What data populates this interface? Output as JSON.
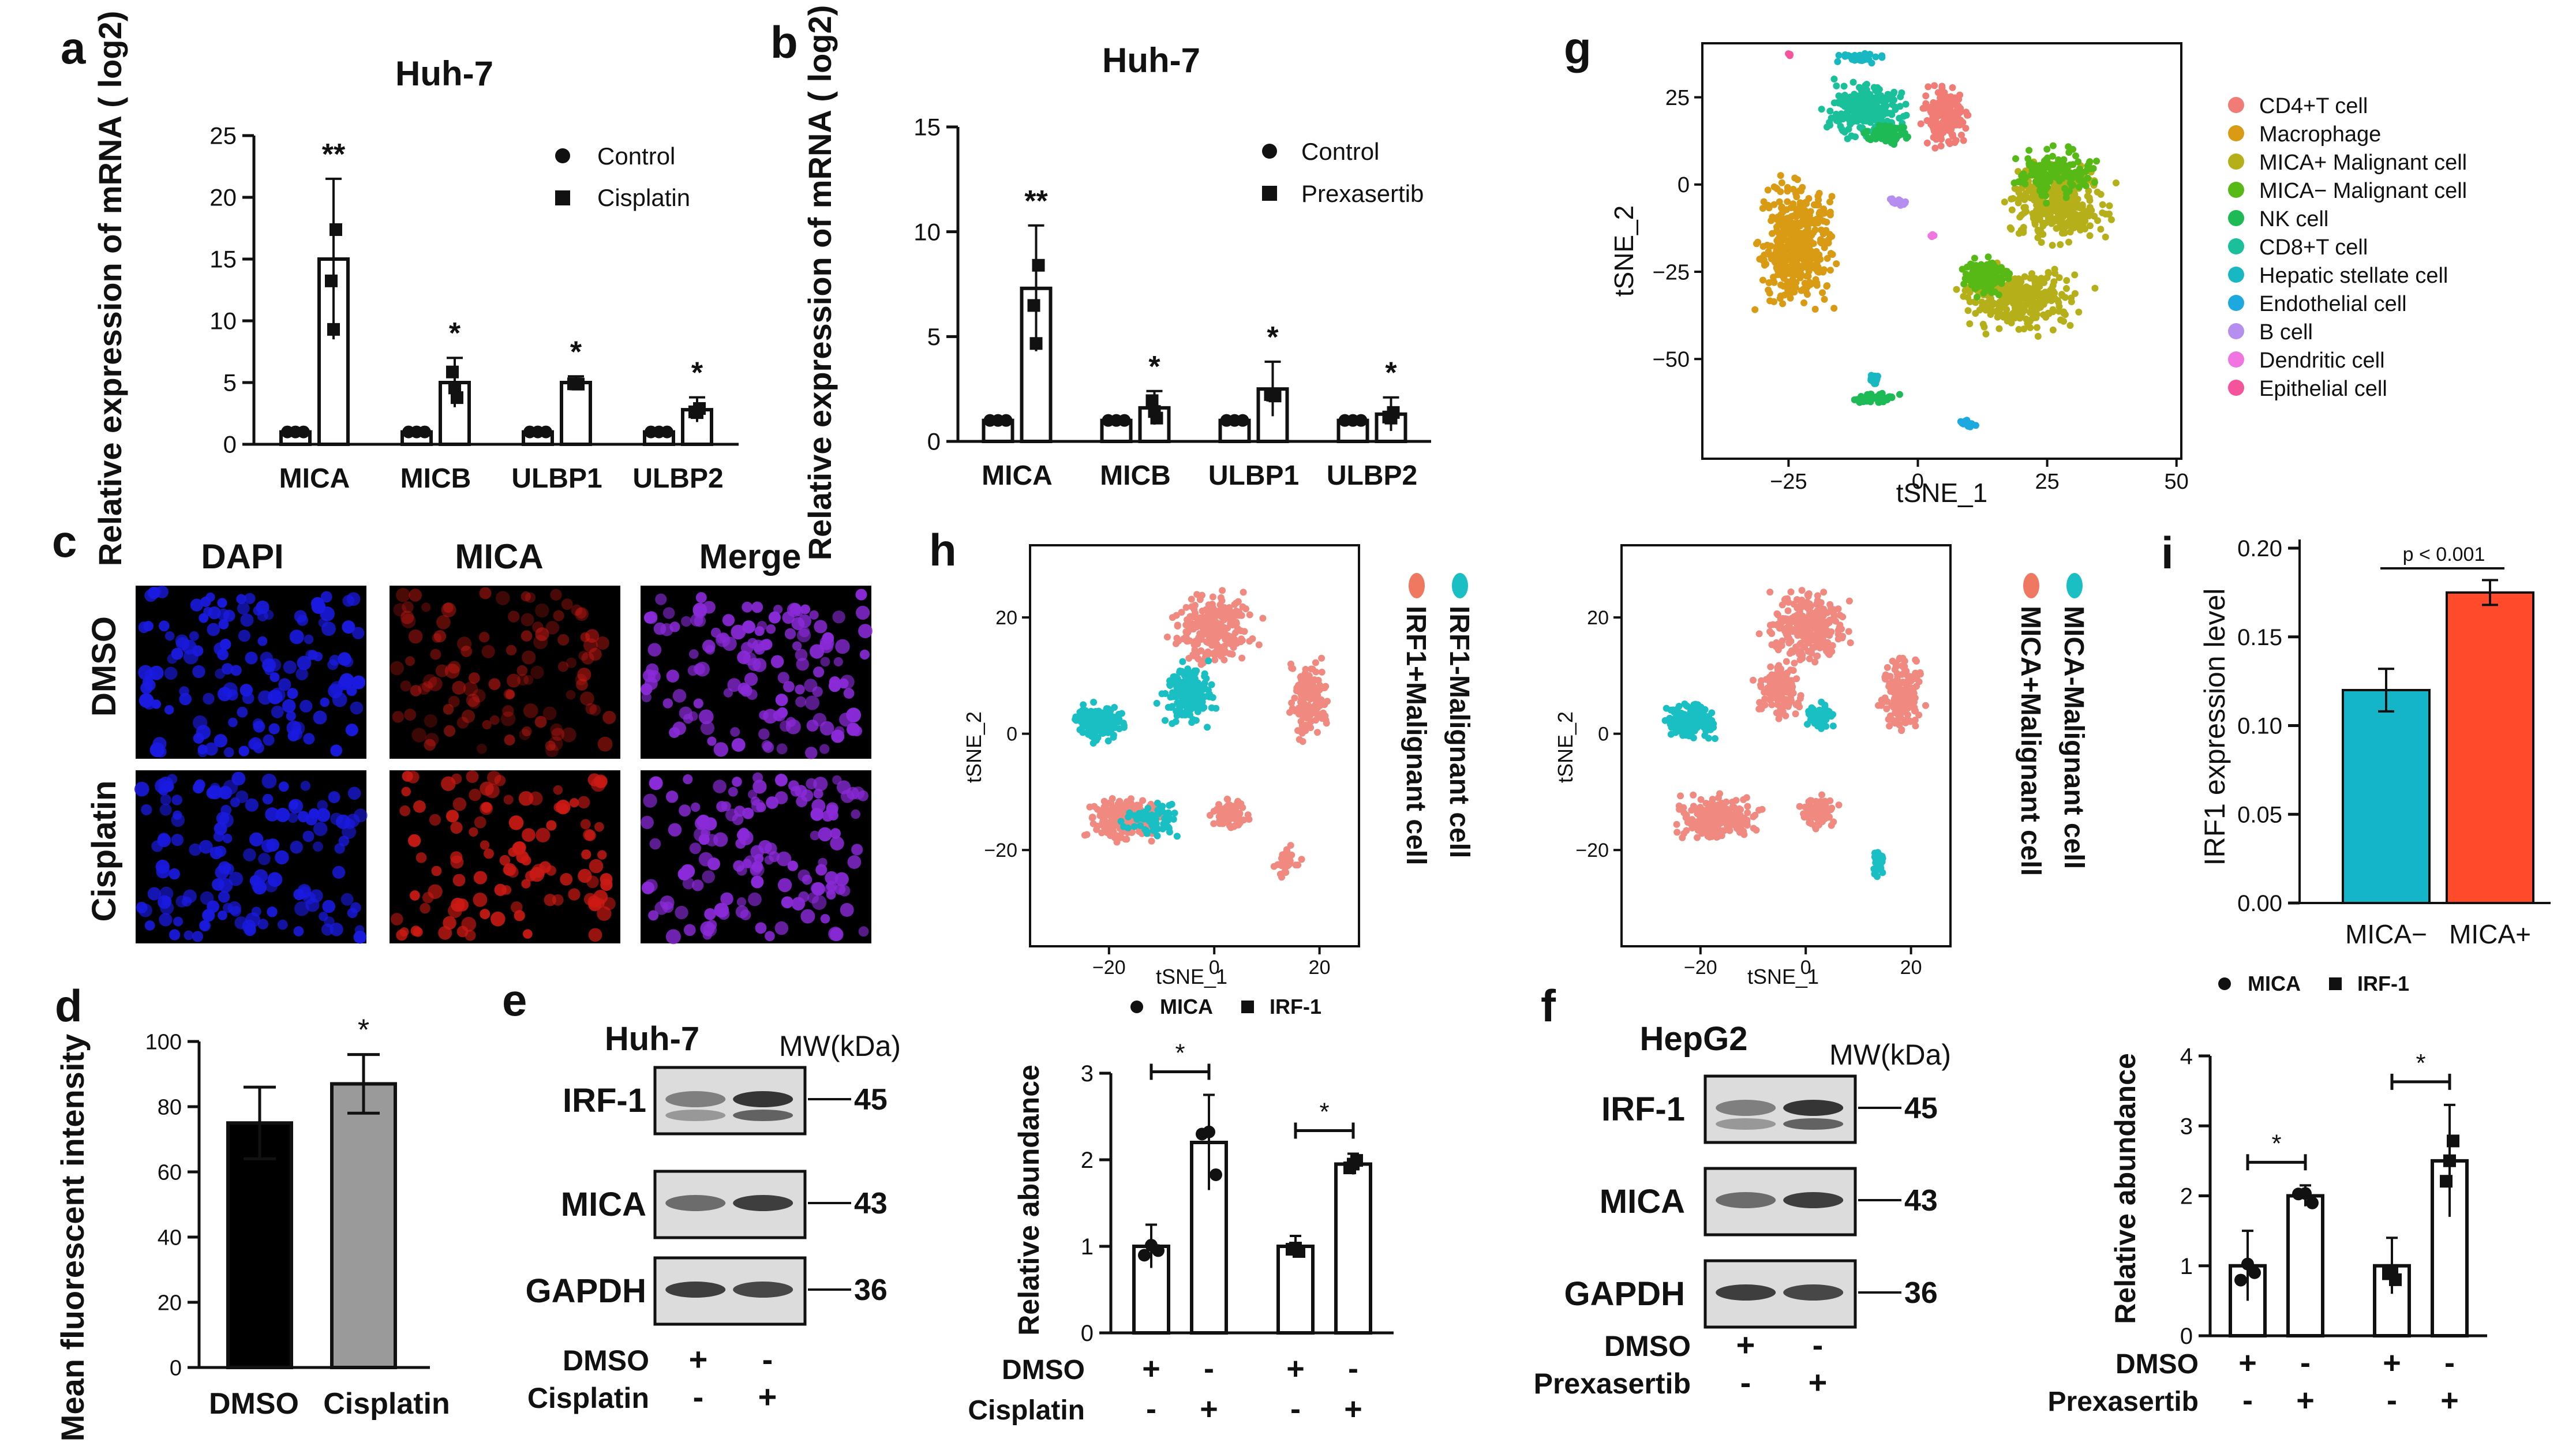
{
  "panel_labels": {
    "a": "a",
    "b": "b",
    "c": "c",
    "d": "d",
    "e": "e",
    "f": "f",
    "g": "g",
    "h": "h",
    "i": "i"
  },
  "chart_data": [
    {
      "id": "a",
      "type": "bar",
      "title": "Huh-7",
      "ylabel": "Relative expression of mRNA ( log2)",
      "categories": [
        "MICA",
        "MICB",
        "ULBP1",
        "ULBP2"
      ],
      "ylim": [
        0,
        25
      ],
      "yticks": [
        "0",
        "5",
        "10",
        "15",
        "20",
        "25"
      ],
      "legend": [
        "Control",
        "Cisplatin"
      ],
      "series": [
        {
          "name": "Control",
          "values": [
            1,
            1,
            1,
            1
          ],
          "sd": [
            0,
            0,
            0,
            0
          ]
        },
        {
          "name": "Cisplatin",
          "values": [
            15,
            5,
            5,
            2.8
          ],
          "sd": [
            6.5,
            2,
            0.5,
            1
          ]
        }
      ],
      "significance": [
        "**",
        "*",
        "*",
        "*"
      ]
    },
    {
      "id": "b",
      "type": "bar",
      "title": "Huh-7",
      "ylabel": "Relative expression of mRNA ( log2)",
      "categories": [
        "MICA",
        "MICB",
        "ULBP1",
        "ULBP2"
      ],
      "ylim": [
        0,
        15
      ],
      "yticks": [
        "0",
        "5",
        "10",
        "15"
      ],
      "legend": [
        "Control",
        "Prexasertib"
      ],
      "series": [
        {
          "name": "Control",
          "values": [
            1,
            1,
            1,
            1
          ],
          "sd": [
            0,
            0,
            0,
            0
          ]
        },
        {
          "name": "Prexasertib",
          "values": [
            7.3,
            1.6,
            2.5,
            1.3
          ],
          "sd": [
            3,
            0.8,
            1.3,
            0.8
          ]
        }
      ],
      "significance": [
        "**",
        "*",
        "*",
        "*"
      ]
    },
    {
      "id": "d",
      "type": "bar",
      "ylabel": "Mean fluorescent intensity",
      "categories": [
        "DMSO",
        "Cisplatin"
      ],
      "values": [
        75,
        87
      ],
      "sd": [
        11,
        9
      ],
      "ylim": [
        0,
        100
      ],
      "yticks": [
        "0",
        "20",
        "40",
        "60",
        "80",
        "100"
      ],
      "colors": [
        "#000000",
        "#9a9a9a"
      ],
      "significance": [
        "",
        "*"
      ]
    },
    {
      "id": "e_bar",
      "type": "bar",
      "ylabel": "Relative abundance",
      "legend": [
        "MICA",
        "IRF-1"
      ],
      "groups": [
        "MICA",
        "IRF-1"
      ],
      "values": [
        [
          1.0,
          2.2
        ],
        [
          1.0,
          1.95
        ]
      ],
      "sd": [
        [
          0.25,
          0.55
        ],
        [
          0.12,
          0.12
        ]
      ],
      "ylim": [
        0,
        3
      ],
      "yticks": [
        "0",
        "1",
        "2",
        "3"
      ],
      "row_labels": [
        "DMSO",
        "Cisplatin"
      ],
      "row_signs": [
        [
          "+",
          "-",
          "+",
          "-"
        ],
        [
          "-",
          "+",
          "-",
          "+"
        ]
      ],
      "significance": [
        "*",
        "*"
      ]
    },
    {
      "id": "f_bar",
      "type": "bar",
      "ylabel": "Relative abundance",
      "legend": [
        "MICA",
        "IRF-1"
      ],
      "groups": [
        "MICA",
        "IRF-1"
      ],
      "values": [
        [
          1.0,
          2.0
        ],
        [
          1.0,
          2.5
        ]
      ],
      "sd": [
        [
          0.5,
          0.15
        ],
        [
          0.4,
          0.8
        ]
      ],
      "ylim": [
        0,
        4
      ],
      "yticks": [
        "0",
        "1",
        "2",
        "3",
        "4"
      ],
      "row_labels": [
        "DMSO",
        "Prexasertib"
      ],
      "row_signs": [
        [
          "+",
          "-",
          "+",
          "-"
        ],
        [
          "-",
          "+",
          "-",
          "+"
        ]
      ],
      "significance": [
        "*",
        "*"
      ]
    },
    {
      "id": "i",
      "type": "bar",
      "ylabel": "IRF1 expression level",
      "categories": [
        "MICA−",
        "MICA+"
      ],
      "values": [
        0.12,
        0.175
      ],
      "sd": [
        0.012,
        0.007
      ],
      "ylim": [
        0,
        0.2
      ],
      "yticks": [
        "0.00",
        "0.05",
        "0.10",
        "0.15",
        "0.20"
      ],
      "colors": [
        "#14b5c9",
        "#ff4a2c"
      ],
      "annotation": "p < 0.001"
    },
    {
      "id": "g",
      "type": "scatter",
      "xlabel": "tSNE_1",
      "ylabel": "tSNE_2",
      "xticks": [
        "−25",
        "0",
        "25",
        "50"
      ],
      "yticks": [
        "25",
        "0",
        "−25",
        "−50"
      ],
      "legend": [
        {
          "label": "CD4+T cell",
          "color": "#f07c75"
        },
        {
          "label": "Macrophage",
          "color": "#d99a14"
        },
        {
          "label": "MICA+ Malignant cell",
          "color": "#b5b01a"
        },
        {
          "label": "MICA− Malignant cell",
          "color": "#56b916"
        },
        {
          "label": "NK cell",
          "color": "#1dba55"
        },
        {
          "label": "CD8+T cell",
          "color": "#19c09a"
        },
        {
          "label": "Hepatic stellate cell",
          "color": "#18b8c2"
        },
        {
          "label": "Endothelial cell",
          "color": "#1da9e0"
        },
        {
          "label": "B cell",
          "color": "#b68ef0"
        },
        {
          "label": "Dendritic cell",
          "color": "#f075e0"
        },
        {
          "label": "Epithelial cell",
          "color": "#f5549a"
        }
      ]
    },
    {
      "id": "h1",
      "type": "scatter",
      "xlabel": "tSNE_1",
      "ylabel": "tSNE_2",
      "xticks": [
        "−20",
        "0",
        "20"
      ],
      "yticks": [
        "20",
        "0",
        "−20"
      ],
      "legend": [
        {
          "label": "IRF1+Malignant cell",
          "color": "#f08a80"
        },
        {
          "label": "IRF1-Malignant cell",
          "color": "#19bfc3"
        }
      ]
    },
    {
      "id": "h2",
      "type": "scatter",
      "xlabel": "tSNE_1",
      "ylabel": "tSNE_2",
      "xticks": [
        "−20",
        "0",
        "20"
      ],
      "yticks": [
        "20",
        "0",
        "−20"
      ],
      "legend": [
        {
          "label": "MICA+Malignant cell",
          "color": "#f08a80"
        },
        {
          "label": "MICA-Malignant cell",
          "color": "#19bfc3"
        }
      ]
    }
  ],
  "panel_c": {
    "columns": [
      "DAPI",
      "MICA",
      "Merge"
    ],
    "rows": [
      "DMSO",
      "Cisplatin"
    ],
    "colors": [
      "#1a1ae0",
      "#cc1a14",
      "#8a2ad8"
    ]
  },
  "blot_e": {
    "cell_line": "Huh-7",
    "mw_header": "MW(kDa)",
    "bands": [
      {
        "label": "IRF-1",
        "mw": "45"
      },
      {
        "label": "MICA",
        "mw": "43"
      },
      {
        "label": "GAPDH",
        "mw": "36"
      }
    ],
    "row_labels": [
      "DMSO",
      "Cisplatin"
    ],
    "row_signs": [
      [
        "+",
        "-"
      ],
      [
        "-",
        "+"
      ]
    ]
  },
  "blot_f": {
    "cell_line": "HepG2",
    "mw_header": "MW(kDa)",
    "bands": [
      {
        "label": "IRF-1",
        "mw": "45"
      },
      {
        "label": "MICA",
        "mw": "43"
      },
      {
        "label": "GAPDH",
        "mw": "36"
      }
    ],
    "row_labels": [
      "DMSO",
      "Prexasertib"
    ],
    "row_signs": [
      [
        "+",
        "-"
      ],
      [
        "-",
        "+"
      ]
    ]
  }
}
